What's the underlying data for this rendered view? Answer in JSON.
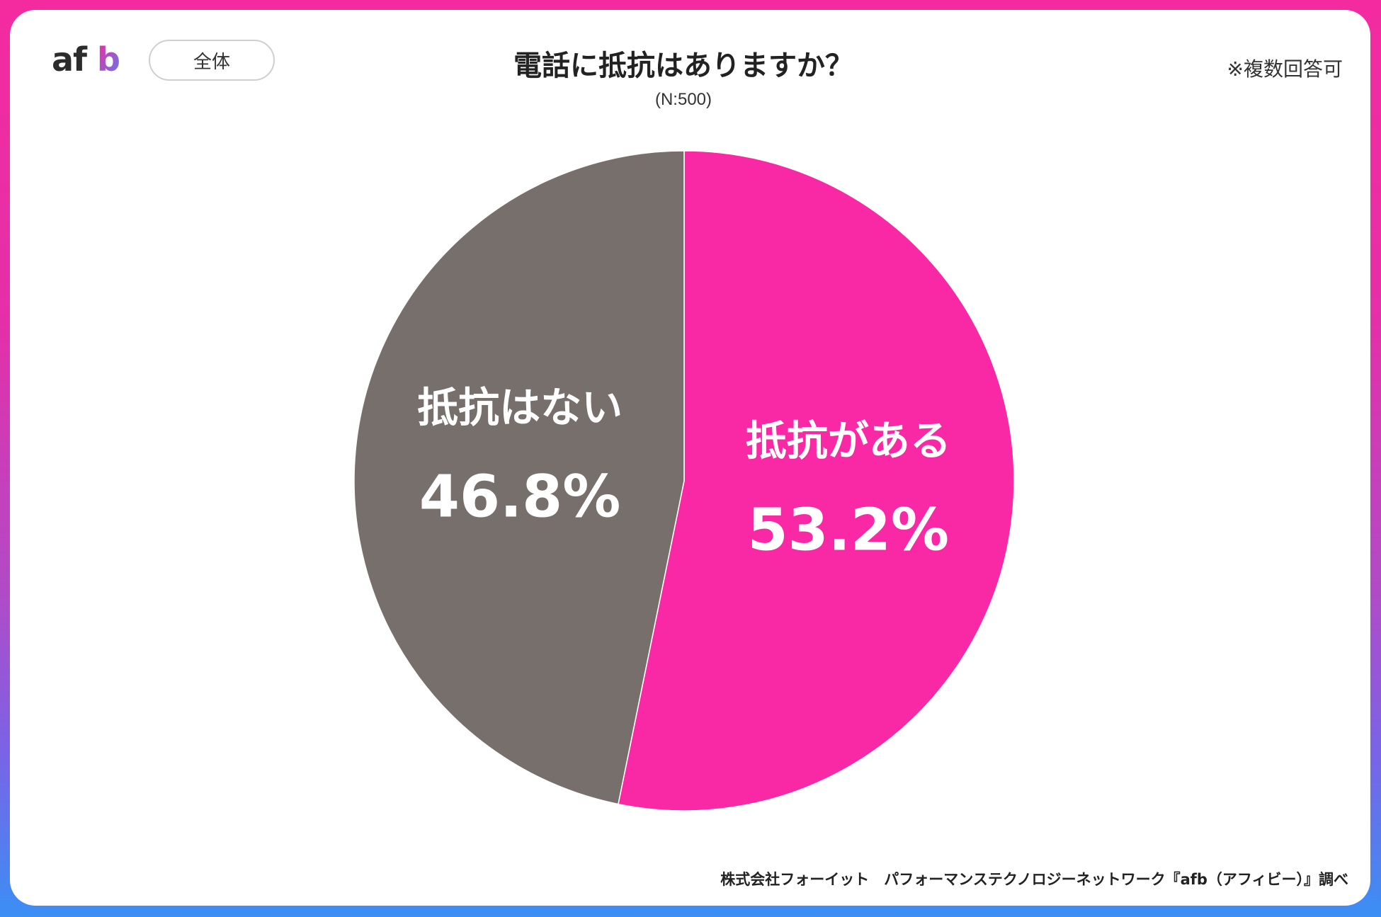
{
  "header": {
    "logo_text": "afb",
    "scope_label": "全体",
    "note": "※複数回答可"
  },
  "colors": {
    "primary": "#f929a6",
    "secondary": "#776f6b",
    "frame_top": "#f42b9f",
    "frame_bottom": "#3b8ff5"
  },
  "chart_data": {
    "type": "pie",
    "title": "電話に抵抗はありますか？",
    "subtitle": "(N:500)",
    "categories": [
      "抵抗がある",
      "抵抗はない"
    ],
    "values": [
      53.2,
      46.8
    ],
    "value_labels": [
      "53.2%",
      "46.8%"
    ],
    "colors": [
      "#f929a6",
      "#776f6b"
    ],
    "start_angle": "12 o'clock",
    "direction": "clockwise",
    "legend": "none (labels inside slices)"
  },
  "footer": {
    "credit": "株式会社フォーイット　パフォーマンステクノロジーネットワーク『afb（アフィビー）』調べ"
  }
}
